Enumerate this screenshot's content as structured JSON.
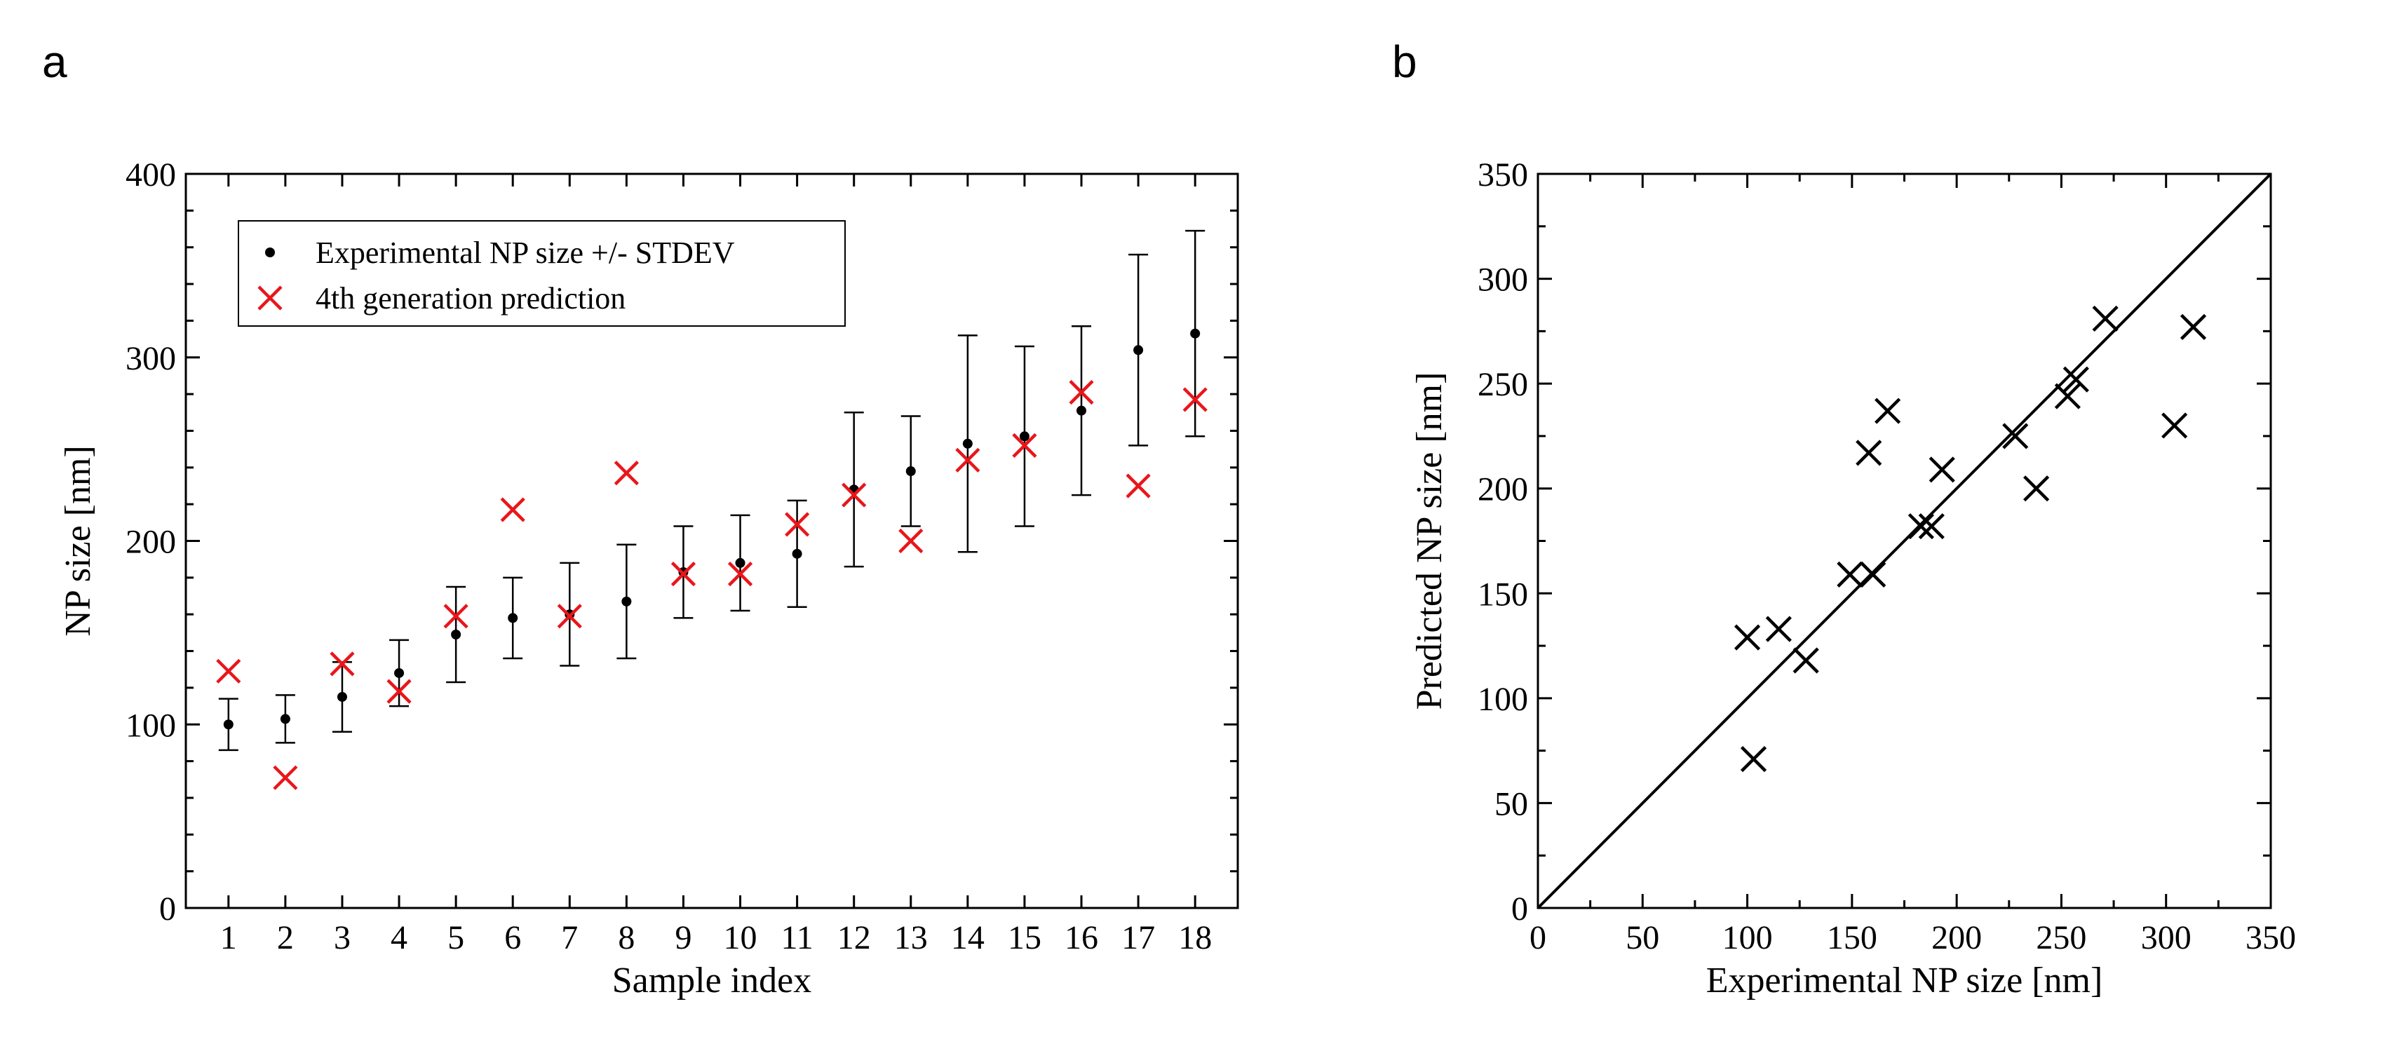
{
  "panels": {
    "a": {
      "letter": "a"
    },
    "b": {
      "letter": "b"
    }
  },
  "chart_data": [
    {
      "id": "a",
      "type": "scatter",
      "xlabel": "Sample index",
      "ylabel": "NP size [nm]",
      "xlim": [
        0.25,
        18.75
      ],
      "ylim": [
        0,
        400
      ],
      "xticks": [
        "1",
        "2",
        "3",
        "4",
        "5",
        "6",
        "7",
        "8",
        "9",
        "10",
        "11",
        "12",
        "13",
        "14",
        "15",
        "16",
        "17",
        "18"
      ],
      "yticks": [
        0,
        100,
        200,
        300,
        400
      ],
      "grid": false,
      "legend_position": "top-left",
      "series": [
        {
          "name": "Experimental NP size +/- STDEV",
          "marker": "dot",
          "color": "#000000",
          "x": [
            1,
            2,
            3,
            4,
            5,
            6,
            7,
            8,
            9,
            10,
            11,
            12,
            13,
            14,
            15,
            16,
            17,
            18
          ],
          "y": [
            100,
            103,
            115,
            128,
            149,
            158,
            160,
            167,
            183,
            188,
            193,
            228,
            238,
            253,
            257,
            271,
            304,
            313
          ],
          "err": [
            14,
            13,
            19,
            18,
            26,
            22,
            28,
            31,
            25,
            26,
            29,
            42,
            30,
            59,
            49,
            46,
            52,
            56
          ]
        },
        {
          "name": "4th generation prediction",
          "marker": "x",
          "color": "#e8161b",
          "x": [
            1,
            2,
            3,
            4,
            5,
            6,
            7,
            8,
            9,
            10,
            11,
            12,
            13,
            14,
            15,
            16,
            17,
            18
          ],
          "y": [
            129,
            71,
            133,
            118,
            159,
            217,
            159,
            237,
            182,
            182,
            209,
            225,
            200,
            244,
            252,
            281,
            230,
            277
          ]
        }
      ]
    },
    {
      "id": "b",
      "type": "scatter",
      "xlabel": "Experimental NP size [nm]",
      "ylabel": "Predicted NP size [nm]",
      "xlim": [
        0,
        350
      ],
      "ylim": [
        0,
        350
      ],
      "xticks": [
        0,
        50,
        100,
        150,
        200,
        250,
        300,
        350
      ],
      "yticks": [
        0,
        50,
        100,
        150,
        200,
        250,
        300,
        350
      ],
      "grid": false,
      "diagonal": [
        [
          0,
          0
        ],
        [
          350,
          350
        ]
      ],
      "series": [
        {
          "marker": "x",
          "color": "#000000",
          "x": [
            100,
            103,
            115,
            128,
            149,
            158,
            160,
            167,
            183,
            188,
            193,
            228,
            238,
            253,
            257,
            271,
            304,
            313
          ],
          "y": [
            129,
            71,
            133,
            118,
            159,
            217,
            159,
            237,
            182,
            182,
            209,
            225,
            200,
            244,
            252,
            281,
            230,
            277
          ]
        }
      ]
    }
  ]
}
